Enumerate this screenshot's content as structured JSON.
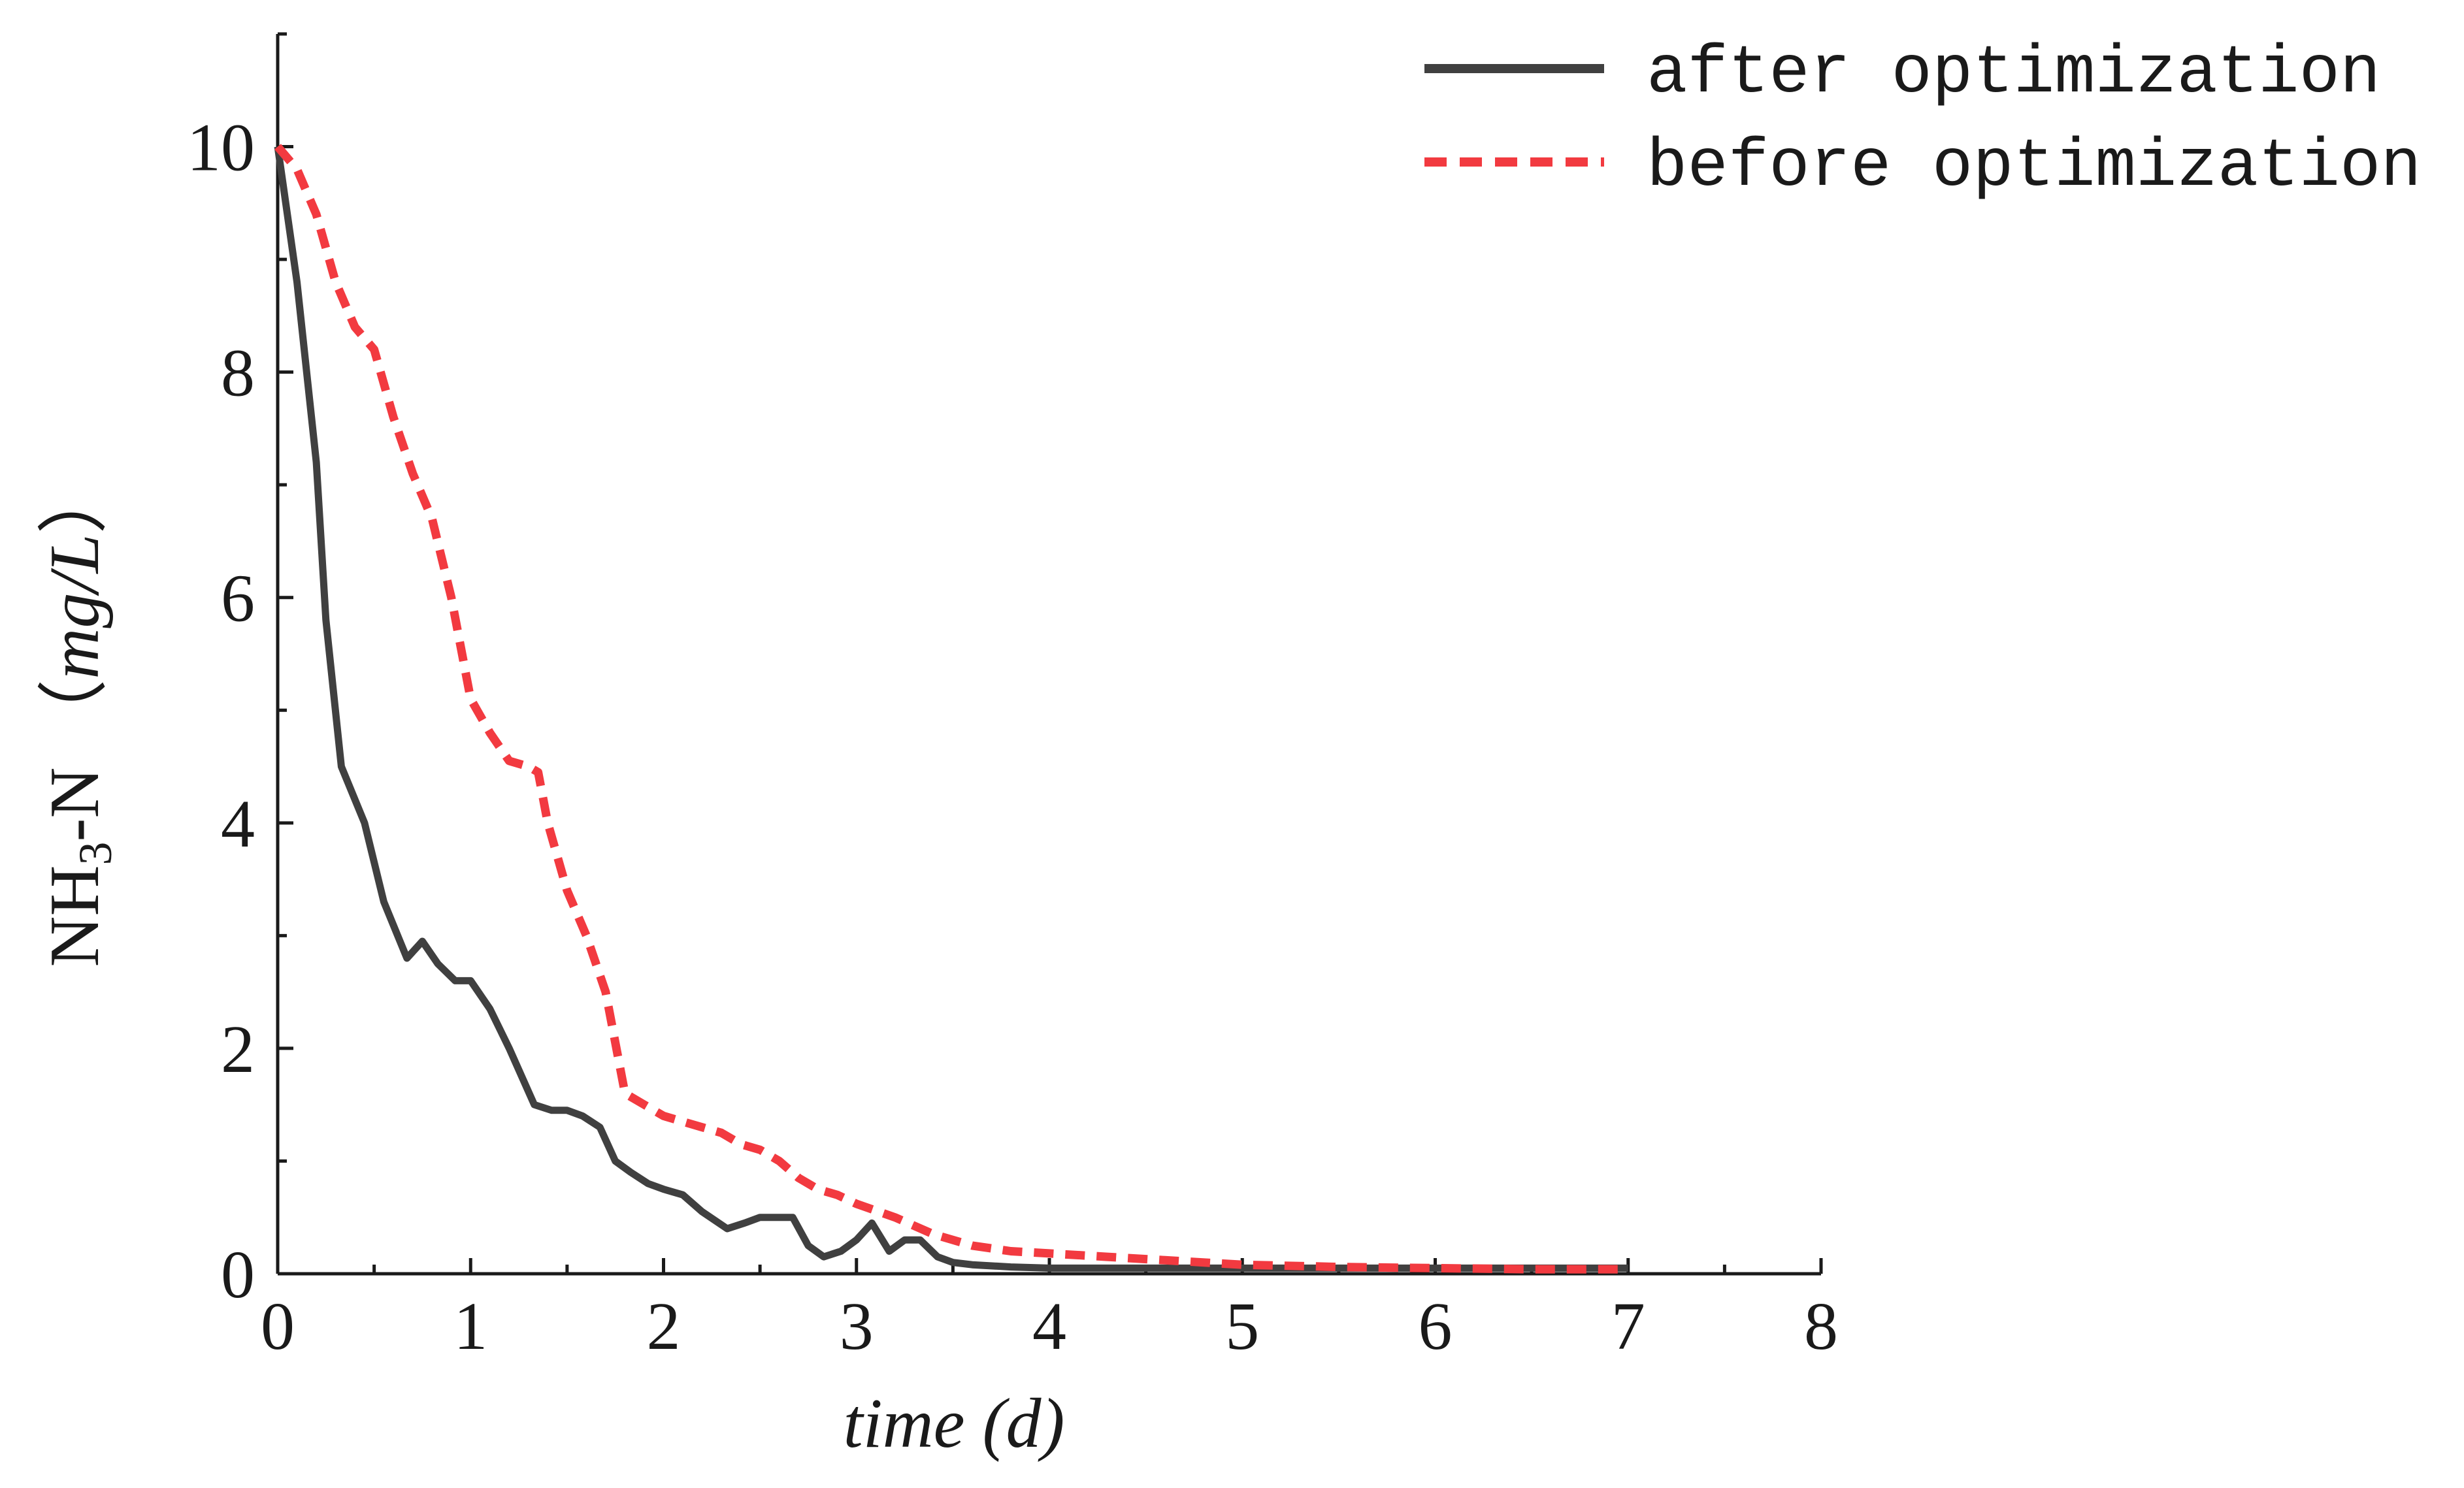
{
  "chart_data": {
    "type": "line",
    "xlabel": "time (d)",
    "ylabel": {
      "prefix": "NH",
      "subscript": "3",
      "middle": "-N （",
      "unit": "mg/L",
      "suffix": "）"
    },
    "xlim": [
      0,
      8
    ],
    "ylim": [
      0,
      11
    ],
    "x_ticks": [
      0,
      1,
      2,
      3,
      4,
      5,
      6,
      7,
      8
    ],
    "y_ticks": [
      0,
      2,
      4,
      6,
      8,
      10
    ],
    "x_minor_step": 0.5,
    "y_minor_step": 1,
    "grid": false,
    "legend_position": "top-right",
    "series": [
      {
        "name": "after optimization",
        "color": "#404040",
        "style": "solid",
        "x": [
          0,
          0.1,
          0.2,
          0.25,
          0.33,
          0.45,
          0.55,
          0.67,
          0.75,
          0.83,
          0.92,
          1.0,
          1.1,
          1.2,
          1.33,
          1.42,
          1.5,
          1.58,
          1.67,
          1.75,
          1.83,
          1.92,
          2.0,
          2.1,
          2.2,
          2.33,
          2.42,
          2.5,
          2.58,
          2.67,
          2.75,
          2.83,
          2.92,
          3.0,
          3.08,
          3.17,
          3.25,
          3.33,
          3.42,
          3.5,
          3.6,
          3.8,
          4.0,
          4.5,
          5.0,
          5.5,
          6.0,
          6.5,
          7.0
        ],
        "y": [
          10.0,
          8.8,
          7.2,
          5.8,
          4.5,
          4.0,
          3.3,
          2.8,
          2.95,
          2.75,
          2.6,
          2.6,
          2.35,
          2.0,
          1.5,
          1.45,
          1.45,
          1.4,
          1.3,
          1.0,
          0.9,
          0.8,
          0.75,
          0.7,
          0.55,
          0.4,
          0.45,
          0.5,
          0.5,
          0.5,
          0.25,
          0.15,
          0.2,
          0.3,
          0.45,
          0.2,
          0.3,
          0.3,
          0.15,
          0.1,
          0.08,
          0.06,
          0.05,
          0.05,
          0.05,
          0.05,
          0.05,
          0.05,
          0.05
        ]
      },
      {
        "name": "before optimization",
        "color": "#f23a40",
        "style": "dashed",
        "x": [
          0,
          0.1,
          0.2,
          0.3,
          0.4,
          0.5,
          0.6,
          0.7,
          0.8,
          0.9,
          1.0,
          1.1,
          1.2,
          1.3,
          1.35,
          1.4,
          1.5,
          1.6,
          1.7,
          1.8,
          1.9,
          2.0,
          2.1,
          2.2,
          2.3,
          2.4,
          2.5,
          2.6,
          2.7,
          2.8,
          2.9,
          3.0,
          3.2,
          3.4,
          3.6,
          3.8,
          4.0,
          4.3,
          4.6,
          5.0,
          5.5,
          6.0,
          6.5,
          7.0
        ],
        "y": [
          10.0,
          9.8,
          9.4,
          8.8,
          8.4,
          8.2,
          7.6,
          7.1,
          6.7,
          6.0,
          5.1,
          4.8,
          4.55,
          4.5,
          4.45,
          4.0,
          3.4,
          3.0,
          2.5,
          1.6,
          1.5,
          1.4,
          1.35,
          1.3,
          1.25,
          1.15,
          1.1,
          1.0,
          0.85,
          0.75,
          0.7,
          0.62,
          0.5,
          0.35,
          0.25,
          0.2,
          0.18,
          0.15,
          0.12,
          0.08,
          0.06,
          0.05,
          0.04,
          0.04
        ]
      }
    ]
  }
}
